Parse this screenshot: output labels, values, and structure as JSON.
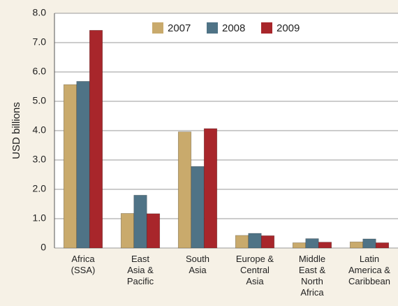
{
  "chart_data": {
    "type": "bar",
    "y_label": "USD billions",
    "categories": [
      "Africa\n(SSA)",
      "East\nAsia &\nPacific",
      "South\nAsia",
      "Europe &\nCentral\nAsia",
      "Middle\nEast &\nNorth\nAfrica",
      "Latin\nAmerica &\nCaribbean"
    ],
    "series": [
      {
        "name": "2007",
        "color": "#c9aa6c",
        "values": [
          5.57,
          1.18,
          3.96,
          0.43,
          0.18,
          0.21
        ]
      },
      {
        "name": "2008",
        "color": "#4f7386",
        "values": [
          5.68,
          1.8,
          2.78,
          0.5,
          0.32,
          0.31
        ]
      },
      {
        "name": "2009",
        "color": "#a8262b",
        "values": [
          7.42,
          1.17,
          4.07,
          0.42,
          0.2,
          0.18
        ]
      }
    ],
    "ylim": [
      0,
      8
    ],
    "yticks": [
      0,
      {
        "value": 1,
        "label": "1.0"
      },
      {
        "value": 2,
        "label": "2.0"
      },
      {
        "value": 3,
        "label": "3.0"
      },
      {
        "value": 4,
        "label": "4.0"
      },
      {
        "value": 5,
        "label": "5.0"
      },
      {
        "value": 6,
        "label": "6.0"
      },
      {
        "value": 7,
        "label": "7.0"
      },
      {
        "value": 8,
        "label": "8.0"
      }
    ],
    "grid": true,
    "legend": "top"
  }
}
